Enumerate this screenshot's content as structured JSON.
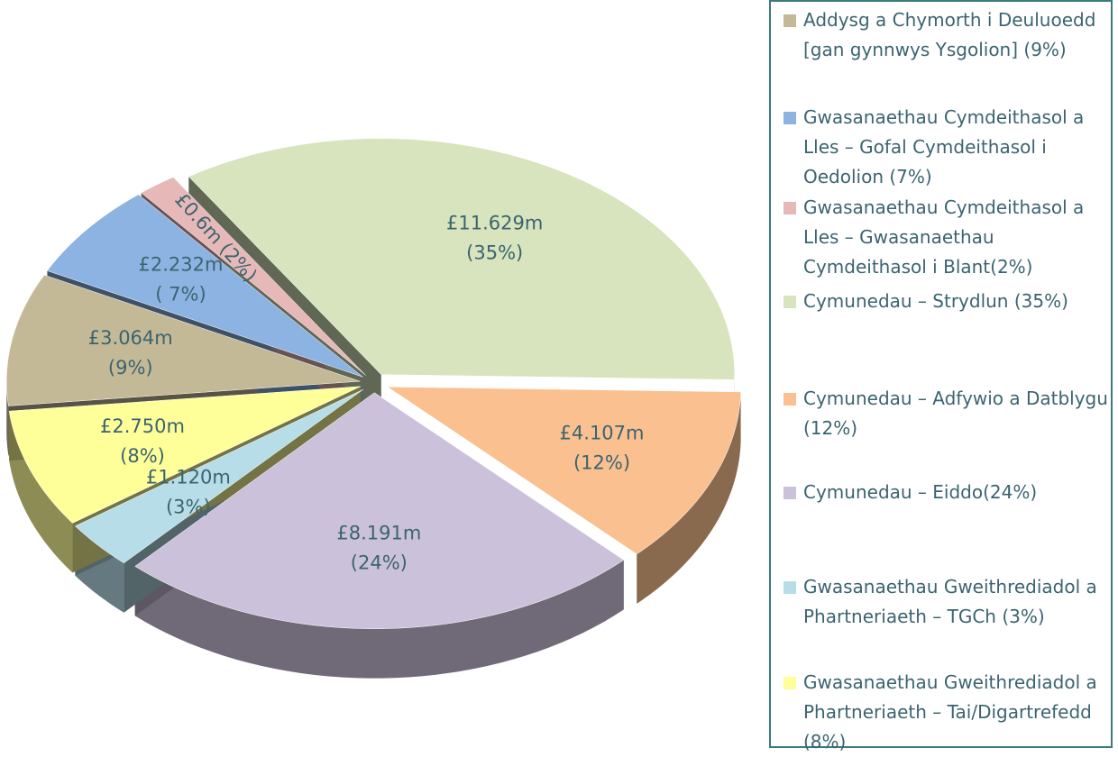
{
  "chart_data": {
    "type": "pie",
    "categories": [
      "Addysg a Chymorth i Deuluoedd [gan gynnwys Ysgolion] (9%)",
      "Gwasanaethau Cymdeithasol a Lles – Gofal Cymdeithasol i Oedolion (7%)",
      "Gwasanaethau Cymdeithasol a Lles – Gwasanaethau Cymdeithasol i Blant(2%)",
      "Cymunedau – Strydlun (35%)",
      "Cymunedau – Adfywio a Datblygu (12%)",
      "Cymunedau – Eiddo(24%)",
      "Gwasanaethau Gweithrediadol a Phartneriaeth – TGCh (3%)",
      "Gwasanaethau Gweithrediadol a Phartneriaeth – Tai/Digartrefedd (8%)"
    ],
    "values": [
      3.064,
      2.232,
      0.6,
      11.629,
      4.107,
      8.191,
      1.12,
      2.75
    ],
    "value_labels": [
      "£3.064m\n(9%)",
      "£2.232m\n( 7%)",
      "£0.6m (2%)",
      "£11.629m\n(35%)",
      "£4.107m\n(12%)",
      "£8.191m\n(24%)",
      "£1.120m\n(3%)",
      "£2.750m\n(8%)"
    ],
    "colors": [
      "#c4b996",
      "#8db3e2",
      "#e6b9b8",
      "#d7e4bd",
      "#fac090",
      "#ccc1da",
      "#b7dee8",
      "#ffff99"
    ]
  }
}
